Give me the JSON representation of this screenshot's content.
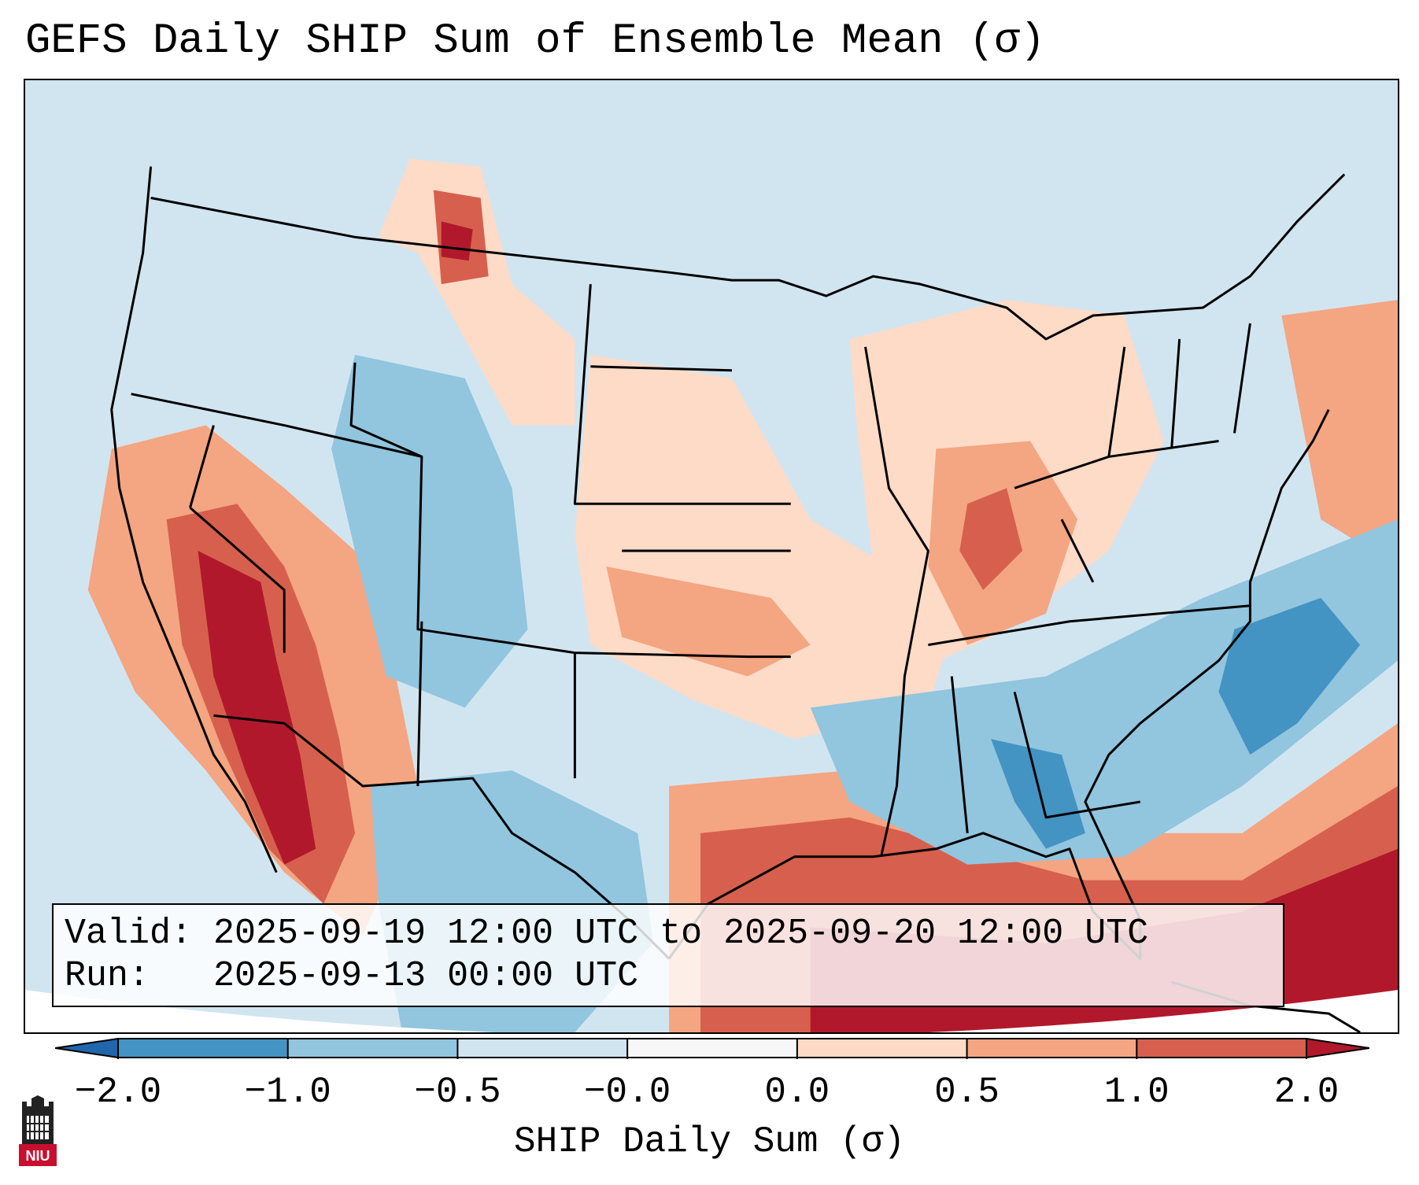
{
  "title": "GEFS Daily SHIP Sum of Ensemble Mean (σ)",
  "info_box": {
    "valid_line": "Valid: 2025-09-19 12:00 UTC to 2025-09-20 12:00 UTC",
    "run_line": "Run:   2025-09-13 00:00 UTC"
  },
  "colorbar": {
    "label": "SHIP Daily Sum (σ)",
    "tick_labels": [
      "−2.0",
      "−1.0",
      "−0.5",
      "−0.0",
      "0.0",
      "0.5",
      "1.0",
      "2.0"
    ],
    "bins": [
      {
        "color": "#4393c3"
      },
      {
        "color": "#92c5de"
      },
      {
        "color": "#d1e5f0"
      },
      {
        "color": "#f7f7f7"
      },
      {
        "color": "#fddbc7"
      },
      {
        "color": "#f4a582"
      },
      {
        "color": "#d6604d"
      }
    ],
    "extend_low_color": "#2166ac",
    "extend_high_color": "#b2182b"
  },
  "logo": {
    "text": "NIU",
    "color": "#c8102e"
  }
}
